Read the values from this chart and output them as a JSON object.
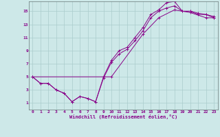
{
  "xlabel": "Windchill (Refroidissement éolien,°C)",
  "bg_color": "#cde8e8",
  "grid_color": "#aacccc",
  "line_color": "#880088",
  "xlim": [
    -0.5,
    23.5
  ],
  "ylim": [
    0,
    16.5
  ],
  "xticks": [
    0,
    1,
    2,
    3,
    4,
    5,
    6,
    7,
    8,
    9,
    10,
    11,
    12,
    13,
    14,
    15,
    16,
    17,
    18,
    19,
    20,
    21,
    22,
    23
  ],
  "yticks": [
    1,
    3,
    5,
    7,
    9,
    11,
    13,
    15
  ],
  "line1_x": [
    0,
    1,
    2,
    3,
    4,
    5,
    6,
    7,
    8,
    9,
    10,
    11,
    12,
    13,
    14,
    15,
    16,
    17,
    18,
    19,
    20,
    21,
    22,
    23
  ],
  "line1_y": [
    5,
    4,
    4,
    3,
    2.5,
    1.2,
    2,
    1.7,
    1.2,
    5,
    7.5,
    9,
    9.5,
    11,
    12.5,
    14.5,
    15.2,
    16.3,
    16.5,
    15,
    15,
    14.5,
    14.5,
    14
  ],
  "line2_x": [
    0,
    1,
    2,
    3,
    4,
    5,
    6,
    7,
    8,
    9,
    10,
    11,
    12,
    13,
    14,
    15,
    16,
    17,
    18,
    19,
    20,
    21,
    22,
    23
  ],
  "line2_y": [
    5,
    4,
    4,
    3,
    2.5,
    1.2,
    2,
    1.7,
    1.2,
    4.8,
    7.2,
    8.5,
    9.2,
    10.5,
    12,
    14,
    15,
    15.5,
    15.8,
    15,
    15,
    14.7,
    14.5,
    14.2
  ],
  "line3_x": [
    0,
    10,
    14,
    16,
    18,
    20,
    22,
    23
  ],
  "line3_y": [
    5,
    5,
    11.5,
    14,
    15.2,
    14.8,
    14,
    14
  ]
}
